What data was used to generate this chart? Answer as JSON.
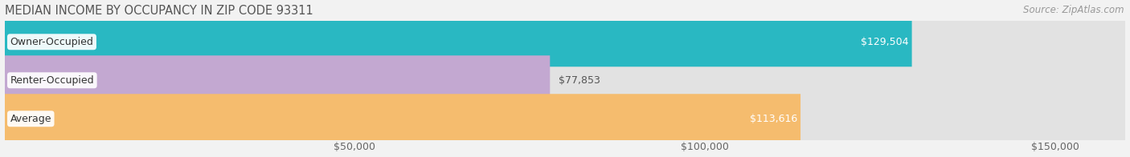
{
  "title": "MEDIAN INCOME BY OCCUPANCY IN ZIP CODE 93311",
  "source": "Source: ZipAtlas.com",
  "categories": [
    "Owner-Occupied",
    "Renter-Occupied",
    "Average"
  ],
  "values": [
    129504,
    77853,
    113616
  ],
  "bar_colors": [
    "#29b8c2",
    "#c3a8d1",
    "#f5bc6e"
  ],
  "bar_labels": [
    "$129,504",
    "$77,853",
    "$113,616"
  ],
  "label_inside": [
    true,
    false,
    true
  ],
  "xlim": [
    0,
    160000
  ],
  "xticks": [
    50000,
    100000,
    150000
  ],
  "xticklabels": [
    "$50,000",
    "$100,000",
    "$150,000"
  ],
  "bg_color": "#f2f2f2",
  "bar_bg_color": "#e2e2e2",
  "title_color": "#555555",
  "source_color": "#999999",
  "bar_height": 0.68,
  "figsize": [
    14.06,
    1.96
  ],
  "dpi": 100
}
